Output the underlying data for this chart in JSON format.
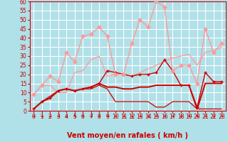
{
  "background_color": "#b0e0e8",
  "grid_color": "#ffffff",
  "x_labels": [
    0,
    1,
    2,
    3,
    4,
    5,
    6,
    7,
    8,
    9,
    10,
    11,
    12,
    13,
    14,
    15,
    16,
    17,
    18,
    19,
    20,
    21,
    22,
    23
  ],
  "ylim": [
    0,
    60
  ],
  "yticks": [
    0,
    5,
    10,
    15,
    20,
    25,
    30,
    35,
    40,
    45,
    50,
    55,
    60
  ],
  "xlabel": "Vent moyen/en rafales ( km/h )",
  "xlabel_color": "#cc0000",
  "xlabel_fontsize": 7.0,
  "tick_color": "#cc0000",
  "tick_fontsize": 5.5,
  "lines": [
    {
      "x": [
        0,
        1,
        2,
        3,
        4,
        5,
        6,
        7,
        8,
        9,
        10,
        11,
        12,
        13,
        14,
        15,
        16,
        17,
        18,
        19,
        20,
        21,
        22,
        23
      ],
      "y": [
        1,
        5,
        7,
        11,
        12,
        11,
        12,
        13,
        15,
        22,
        21,
        20,
        19,
        20,
        20,
        21,
        28,
        22,
        14,
        14,
        2,
        21,
        16,
        16
      ],
      "color": "#cc0000",
      "linewidth": 1.0,
      "marker": "+",
      "markersize": 3.5,
      "zorder": 5
    },
    {
      "x": [
        0,
        1,
        2,
        3,
        4,
        5,
        6,
        7,
        8,
        9,
        10,
        11,
        12,
        13,
        14,
        15,
        16,
        17,
        18,
        19,
        20,
        21,
        22,
        23
      ],
      "y": [
        1,
        5,
        7,
        11,
        12,
        11,
        12,
        13,
        15,
        13,
        13,
        12,
        12,
        13,
        13,
        14,
        14,
        14,
        14,
        14,
        1,
        15,
        15,
        15
      ],
      "color": "#cc0000",
      "linewidth": 1.4,
      "marker": null,
      "markersize": 0,
      "zorder": 4
    },
    {
      "x": [
        0,
        1,
        2,
        3,
        4,
        5,
        6,
        7,
        8,
        9,
        10,
        11,
        12,
        13,
        14,
        15,
        16,
        17,
        18,
        19,
        20,
        21,
        22,
        23
      ],
      "y": [
        1,
        5,
        8,
        11,
        12,
        11,
        12,
        12,
        14,
        12,
        5,
        5,
        5,
        5,
        5,
        2,
        2,
        5,
        5,
        5,
        1,
        1,
        1,
        1
      ],
      "color": "#cc0000",
      "linewidth": 0.9,
      "marker": null,
      "markersize": 0,
      "zorder": 3
    },
    {
      "x": [
        0,
        1,
        2,
        3,
        4,
        5,
        6,
        7,
        8,
        9,
        10,
        11,
        12,
        13,
        14,
        15,
        16,
        17,
        18,
        19,
        20,
        21,
        22,
        23
      ],
      "y": [
        9,
        14,
        19,
        16,
        32,
        27,
        41,
        42,
        46,
        41,
        20,
        20,
        37,
        50,
        46,
        60,
        57,
        22,
        25,
        25,
        15,
        45,
        32,
        37
      ],
      "color": "#ff9999",
      "linewidth": 1.0,
      "marker": "D",
      "markersize": 2.5,
      "zorder": 6
    },
    {
      "x": [
        0,
        1,
        2,
        3,
        4,
        5,
        6,
        7,
        8,
        9,
        10,
        11,
        12,
        13,
        14,
        15,
        16,
        17,
        18,
        19,
        20,
        21,
        22,
        23
      ],
      "y": [
        9,
        14,
        14,
        10,
        10,
        21,
        22,
        28,
        30,
        19,
        20,
        20,
        19,
        21,
        23,
        25,
        27,
        29,
        30,
        31,
        25,
        32,
        33,
        35
      ],
      "color": "#ff9999",
      "linewidth": 0.9,
      "marker": null,
      "markersize": 0,
      "zorder": 2
    }
  ],
  "arrow_color": "#cc0000",
  "spine_color": "#cc0000"
}
